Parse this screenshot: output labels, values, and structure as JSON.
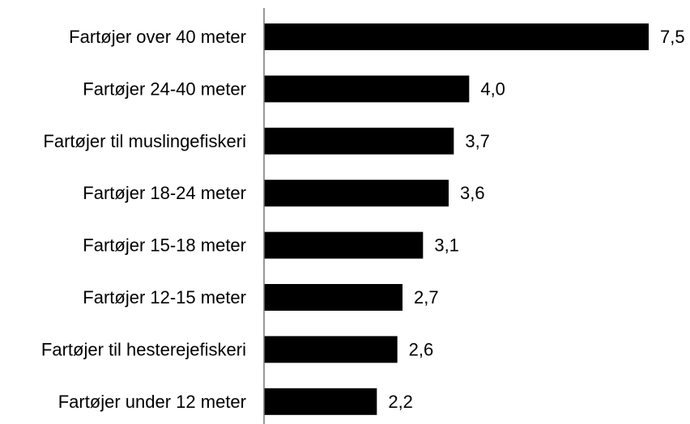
{
  "chart_data": {
    "type": "bar",
    "orientation": "horizontal",
    "categories": [
      "Fartøjer over 40 meter",
      "Fartøjer 24-40 meter",
      "Fartøjer til muslingefiskeri",
      "Fartøjer 18-24 meter",
      "Fartøjer 15-18 meter",
      "Fartøjer 12-15 meter",
      "Fartøjer til hesterejefiskeri",
      "Fartøjer under 12 meter"
    ],
    "values": [
      7.5,
      4.0,
      3.7,
      3.6,
      3.1,
      2.7,
      2.6,
      2.2
    ],
    "value_labels": [
      "7,5",
      "4,0",
      "3,7",
      "3,6",
      "3,1",
      "2,7",
      "2,6",
      "2,2"
    ],
    "xlim": [
      0,
      7.5
    ],
    "grid": false,
    "bar_color": "#000000"
  }
}
